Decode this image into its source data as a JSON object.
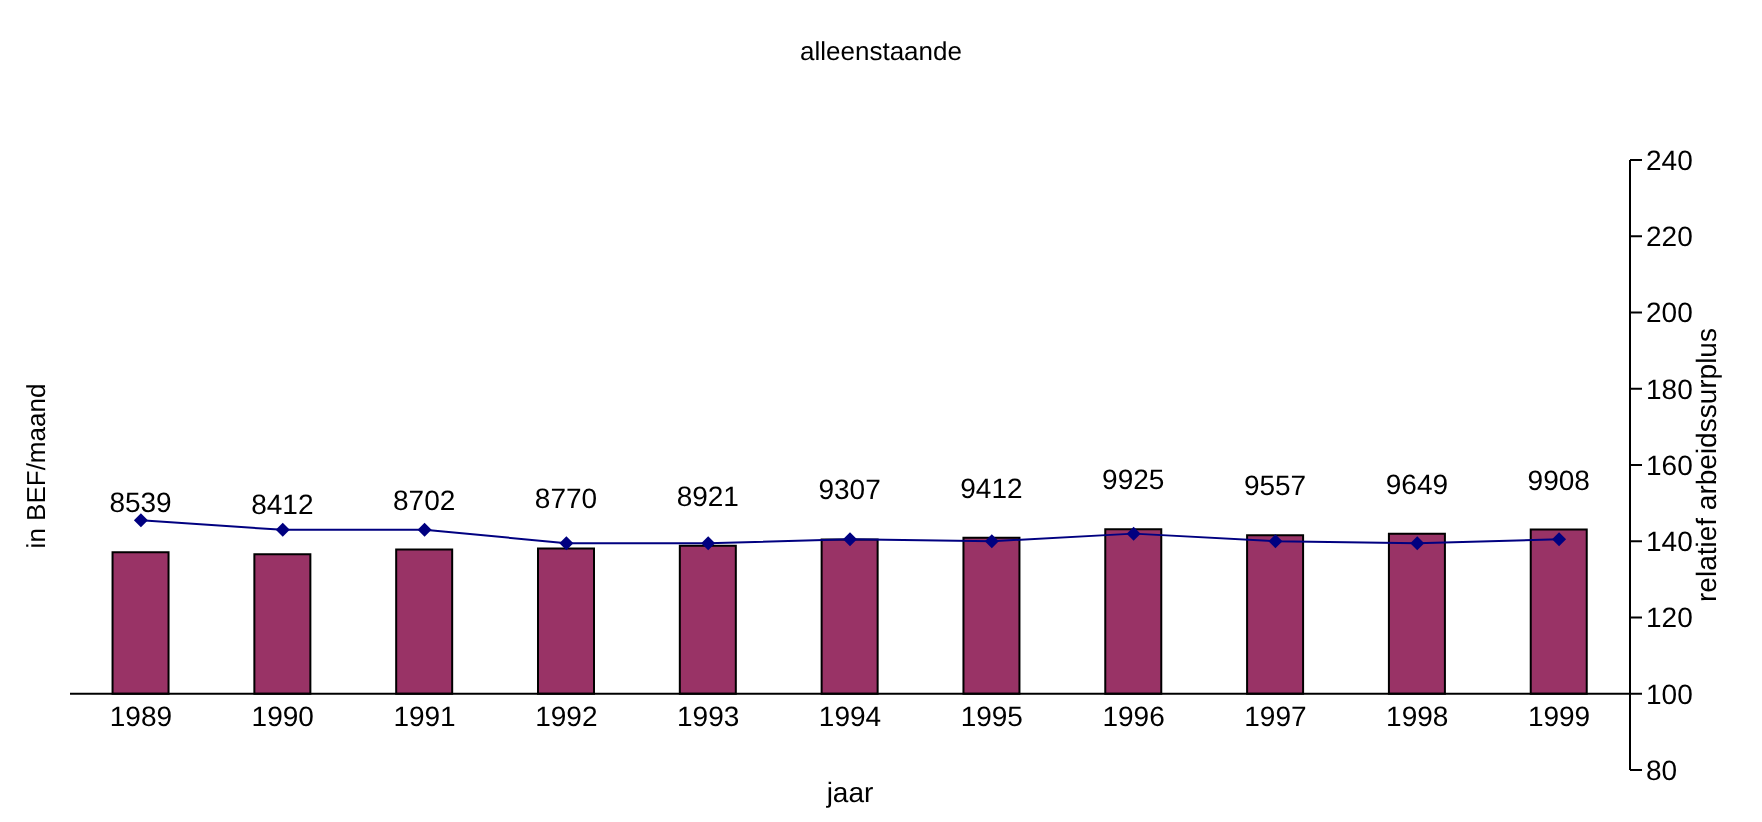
{
  "chart_data": {
    "type": "bar",
    "title": "alleenstaande",
    "xlabel": "jaar",
    "ylabel": "in BEF/maand",
    "y2label": "relatief arbeidssurplus",
    "categories": [
      "1989",
      "1990",
      "1991",
      "1992",
      "1993",
      "1994",
      "1995",
      "1996",
      "1997",
      "1998",
      "1999"
    ],
    "series": [
      {
        "color": "#993366",
        "values": [
          8539,
          8412,
          8702,
          8770,
          8921,
          9307,
          9412,
          9925,
          9557,
          9649,
          9908
        ],
        "value_labels": [
          "8539",
          "8412",
          "8702",
          "8770",
          "8921",
          "9307",
          "9412",
          "9925",
          "9557",
          "9649",
          "9908"
        ]
      },
      {
        "type": "line",
        "axis": "y2",
        "color": "#000080",
        "marker": "diamond",
        "values": [
          145.5,
          143,
          143,
          139.5,
          139.5,
          140.5,
          140,
          142,
          140,
          139.5,
          140.5
        ]
      }
    ],
    "ylim": [
      -4600,
      32200
    ],
    "y2lim": [
      80,
      240
    ],
    "y2ticks": [
      80,
      100,
      120,
      140,
      160,
      180,
      200,
      220,
      240
    ]
  }
}
